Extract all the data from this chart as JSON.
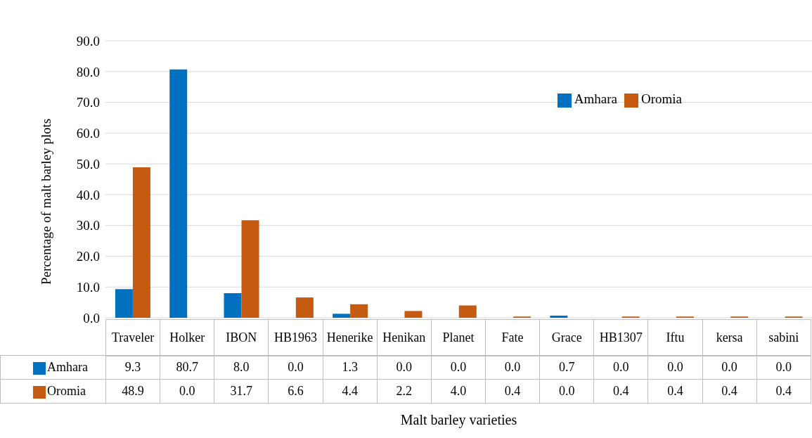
{
  "chart_data": {
    "type": "bar",
    "xlabel": "Malt barley varieties",
    "ylabel": "Percentage of malt barley plots",
    "categories": [
      "Traveler",
      "Holker",
      "IBON",
      "HB1963",
      "Henerike",
      "Henikan",
      "Planet",
      "Fate",
      "Grace",
      "HB1307",
      "Iftu",
      "kersa",
      "sabini"
    ],
    "series": [
      {
        "name": "Amhara",
        "color": "#0070c0",
        "values": [
          9.3,
          80.7,
          8.0,
          0.0,
          1.3,
          0.0,
          0.0,
          0.0,
          0.7,
          0.0,
          0.0,
          0.0,
          0.0
        ],
        "value_labels": [
          "9.3",
          "80.7",
          "8.0",
          "0.0",
          "1.3",
          "0.0",
          "0.0",
          "0.0",
          "0.7",
          "0.0",
          "0.0",
          "0.0",
          "0.0"
        ]
      },
      {
        "name": "Oromia",
        "color": "#c55a11",
        "values": [
          48.9,
          0.0,
          31.7,
          6.6,
          4.4,
          2.2,
          4.0,
          0.4,
          0.0,
          0.4,
          0.4,
          0.4,
          0.4
        ],
        "value_labels": [
          "48.9",
          "0.0",
          "31.7",
          "6.6",
          "4.4",
          "2.2",
          "4.0",
          "0.4",
          "0.0",
          "0.4",
          "0.4",
          "0.4",
          "0.4"
        ]
      }
    ],
    "ylim": [
      0,
      90
    ],
    "yticks": [
      {
        "value": 0,
        "label": "0.0"
      },
      {
        "value": 10,
        "label": "10.0"
      },
      {
        "value": 20,
        "label": "20.0"
      },
      {
        "value": 30,
        "label": "30.0"
      },
      {
        "value": 40,
        "label": "40.0"
      },
      {
        "value": 50,
        "label": "50.0"
      },
      {
        "value": 60,
        "label": "60.0"
      },
      {
        "value": 70,
        "label": "70.0"
      },
      {
        "value": 80,
        "label": "80.0"
      },
      {
        "value": 90,
        "label": "90.0"
      }
    ],
    "grid": "y",
    "legend": "top right"
  }
}
